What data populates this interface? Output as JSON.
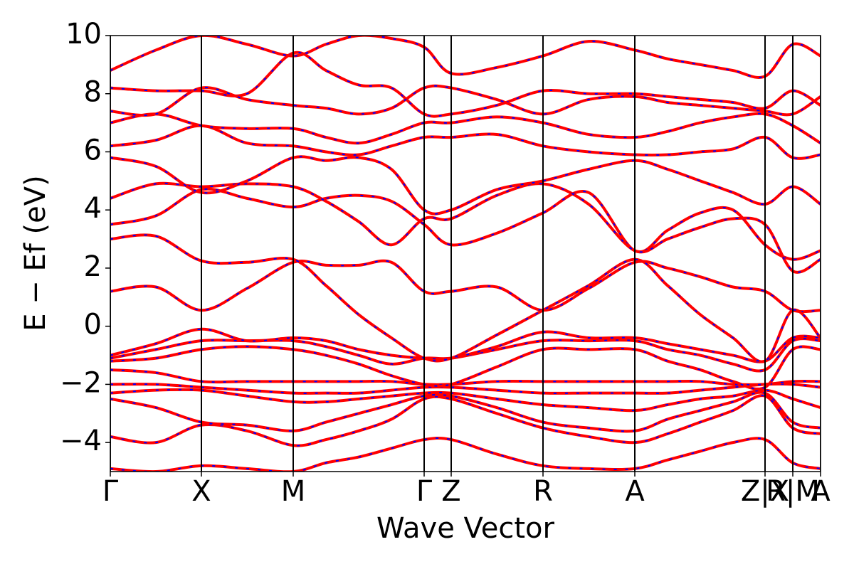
{
  "chart_data": {
    "type": "line",
    "x_label": "Wave Vector",
    "y_label": "E − Ef (eV)",
    "color": "#ff0000",
    "dash_color": "#0000ff",
    "xlim": [
      0,
      9.98
    ],
    "ylim": [
      -5,
      10
    ],
    "xticks": [
      {
        "value": 0,
        "label": "Γ"
      },
      {
        "value": 1.28,
        "label": "X"
      },
      {
        "value": 2.57,
        "label": "M"
      },
      {
        "value": 4.41,
        "label": "Γ"
      },
      {
        "value": 4.79,
        "label": "Z"
      },
      {
        "value": 6.08,
        "label": "R"
      },
      {
        "value": 7.37,
        "label": "A"
      },
      {
        "value": 9.2,
        "label": "Z|X"
      },
      {
        "value": 9.59,
        "label": "R|M"
      },
      {
        "value": 9.98,
        "label": "A"
      }
    ],
    "yticks": [
      {
        "value": -4,
        "label": "−4"
      },
      {
        "value": -2,
        "label": "−2"
      },
      0,
      2,
      4,
      6,
      8,
      10
    ],
    "x": [
      0,
      0.64,
      1.28,
      1.92,
      2.57,
      3.03,
      3.49,
      3.95,
      4.41,
      4.79,
      5.43,
      6.08,
      6.72,
      7.37,
      7.83,
      8.29,
      8.75,
      9.2,
      9.59,
      9.98
    ],
    "series": [
      {
        "values": [
          -4.9,
          -5.0,
          -4.8,
          -4.9,
          -5.0,
          -4.7,
          -4.5,
          -4.2,
          -3.9,
          -3.9,
          -4.4,
          -4.8,
          -4.9,
          -4.9,
          -4.6,
          -4.3,
          -4.0,
          -3.9,
          -4.7,
          -4.9
        ]
      },
      {
        "values": [
          -3.8,
          -4.0,
          -3.4,
          -3.6,
          -4.1,
          -3.9,
          -3.6,
          -3.2,
          -2.5,
          -2.5,
          -3.0,
          -3.5,
          -3.8,
          -4.0,
          -3.7,
          -3.3,
          -2.9,
          -2.4,
          -3.5,
          -3.7
        ]
      },
      {
        "values": [
          -2.5,
          -2.8,
          -3.3,
          -3.4,
          -3.6,
          -3.3,
          -3.0,
          -2.7,
          -2.4,
          -2.4,
          -2.8,
          -3.3,
          -3.5,
          -3.6,
          -3.2,
          -2.9,
          -2.6,
          -2.3,
          -3.3,
          -3.5
        ]
      },
      {
        "values": [
          -2.3,
          -2.2,
          -2.2,
          -2.4,
          -2.6,
          -2.6,
          -2.5,
          -2.4,
          -2.3,
          -2.3,
          -2.5,
          -2.7,
          -2.8,
          -2.9,
          -2.7,
          -2.5,
          -2.4,
          -2.2,
          -2.5,
          -2.8
        ]
      },
      {
        "values": [
          -2.0,
          -2.0,
          -2.1,
          -2.2,
          -2.3,
          -2.3,
          -2.3,
          -2.2,
          -2.1,
          -2.1,
          -2.2,
          -2.3,
          -2.3,
          -2.3,
          -2.3,
          -2.2,
          -2.1,
          -2.0,
          -2.0,
          -2.1
        ]
      },
      {
        "values": [
          -1.5,
          -1.6,
          -1.9,
          -1.9,
          -1.9,
          -1.9,
          -1.9,
          -1.9,
          -2.0,
          -2.0,
          -1.9,
          -1.9,
          -1.9,
          -1.9,
          -1.9,
          -1.9,
          -2.0,
          -2.0,
          -1.9,
          -1.9
        ]
      },
      {
        "values": [
          -1.2,
          -1.1,
          -0.8,
          -0.7,
          -0.8,
          -1.0,
          -1.3,
          -1.7,
          -2.0,
          -2.0,
          -1.4,
          -0.8,
          -0.8,
          -0.8,
          -1.2,
          -1.5,
          -1.9,
          -2.1,
          -0.8,
          -0.8
        ]
      },
      {
        "values": [
          -1.1,
          -0.8,
          -0.5,
          -0.5,
          -0.5,
          -0.7,
          -1.0,
          -1.3,
          -1.1,
          -1.1,
          -0.8,
          -0.5,
          -0.5,
          -0.5,
          -0.8,
          -1.0,
          -1.3,
          -1.5,
          -0.5,
          -0.5
        ]
      },
      {
        "values": [
          -1.0,
          -0.6,
          -0.1,
          -0.5,
          -0.4,
          -0.5,
          -0.8,
          -1.0,
          -1.1,
          -1.1,
          -0.7,
          -0.2,
          -0.4,
          -0.4,
          -0.6,
          -0.8,
          -1.0,
          -1.2,
          -0.4,
          -0.4
        ]
      },
      {
        "values": [
          1.2,
          1.35,
          0.55,
          1.3,
          2.2,
          2.1,
          2.1,
          2.2,
          1.2,
          1.2,
          1.35,
          0.55,
          1.3,
          2.2,
          2.0,
          1.7,
          1.35,
          1.2,
          0.55,
          0.55
        ]
      },
      {
        "values": [
          3.0,
          3.1,
          2.25,
          2.2,
          2.3,
          1.4,
          0.4,
          -0.4,
          -1.1,
          -1.1,
          -0.3,
          0.55,
          1.4,
          2.3,
          1.4,
          0.4,
          -0.4,
          -1.2,
          0.55,
          -0.4
        ]
      },
      {
        "values": [
          3.5,
          3.8,
          4.7,
          4.4,
          4.1,
          4.4,
          4.5,
          4.3,
          3.5,
          2.8,
          3.2,
          3.9,
          4.6,
          2.6,
          3.3,
          3.9,
          4.0,
          2.8,
          2.3,
          2.6
        ]
      },
      {
        "values": [
          4.4,
          4.9,
          4.8,
          4.9,
          4.8,
          4.3,
          3.6,
          2.8,
          3.7,
          3.7,
          4.5,
          4.9,
          4.2,
          2.6,
          3.0,
          3.4,
          3.7,
          3.5,
          1.9,
          2.3
        ]
      },
      {
        "values": [
          5.8,
          5.5,
          4.6,
          5.0,
          5.8,
          5.7,
          5.8,
          5.4,
          4.0,
          4.0,
          4.7,
          5.0,
          5.4,
          5.7,
          5.4,
          5.0,
          4.6,
          4.2,
          4.8,
          4.2
        ]
      },
      {
        "values": [
          6.2,
          6.4,
          6.9,
          6.3,
          6.2,
          6.0,
          5.9,
          6.2,
          6.5,
          6.5,
          6.6,
          6.2,
          6.0,
          5.9,
          5.9,
          6.0,
          6.1,
          6.5,
          5.8,
          5.9
        ]
      },
      {
        "values": [
          7.0,
          7.3,
          6.9,
          6.8,
          6.8,
          6.5,
          6.3,
          6.6,
          7.0,
          7.0,
          7.2,
          7.0,
          6.6,
          6.5,
          6.7,
          7.0,
          7.2,
          7.3,
          6.9,
          6.3
        ]
      },
      {
        "values": [
          8.2,
          8.1,
          8.1,
          8.0,
          9.4,
          8.8,
          8.3,
          8.2,
          7.3,
          7.3,
          7.6,
          8.1,
          8.0,
          8.0,
          7.9,
          7.8,
          7.7,
          7.5,
          8.1,
          7.6
        ]
      },
      {
        "values": [
          8.8,
          9.5,
          10.0,
          9.7,
          9.3,
          9.7,
          10.0,
          9.9,
          9.6,
          8.7,
          8.9,
          9.3,
          9.8,
          9.5,
          9.2,
          9.0,
          8.8,
          8.6,
          9.7,
          9.3
        ]
      },
      {
        "values": [
          7.4,
          7.3,
          8.2,
          7.8,
          7.6,
          7.5,
          7.3,
          7.5,
          8.2,
          8.2,
          7.8,
          7.3,
          7.8,
          7.9,
          7.7,
          7.6,
          7.5,
          7.4,
          7.3,
          7.9
        ]
      }
    ]
  }
}
